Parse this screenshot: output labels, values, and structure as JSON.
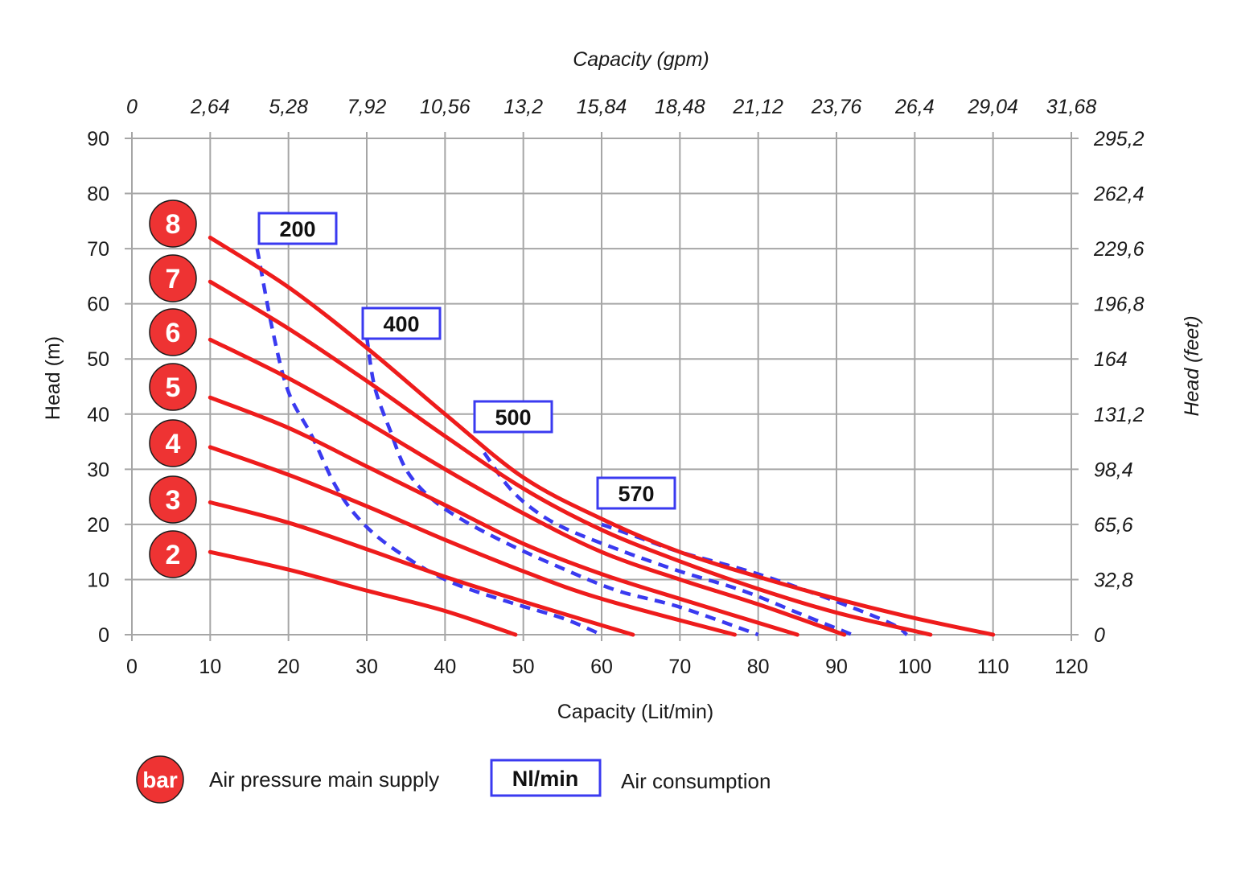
{
  "chart_data": {
    "type": "line",
    "xlabel": "Capacity (Lit/min)",
    "ylabel": "Head (m)",
    "x2label": "Capacity (gpm)",
    "y2label": "Head (feet)",
    "xlim": [
      0,
      120
    ],
    "ylim": [
      0,
      90
    ],
    "x_ticks": [
      "0",
      "10",
      "20",
      "30",
      "40",
      "50",
      "60",
      "70",
      "80",
      "90",
      "100",
      "110",
      "120"
    ],
    "y_ticks": [
      "0",
      "10",
      "20",
      "30",
      "40",
      "50",
      "60",
      "70",
      "80",
      "90"
    ],
    "x2_ticks": [
      "0",
      "2,64",
      "5,28",
      "7,92",
      "10,56",
      "13,2",
      "15,84",
      "18,48",
      "21,12",
      "23,76",
      "26,4",
      "29,04",
      "31,68"
    ],
    "y2_ticks": [
      "0",
      "32,8",
      "65,6",
      "98,4",
      "131,2",
      "164",
      "196,8",
      "229,6",
      "262,4",
      "295,2"
    ],
    "grid": true,
    "series": [
      {
        "name": "2",
        "kind": "pressure",
        "points": [
          [
            10,
            15
          ],
          [
            20,
            11.8
          ],
          [
            30,
            8
          ],
          [
            40,
            4.3
          ],
          [
            49,
            0
          ]
        ]
      },
      {
        "name": "3",
        "kind": "pressure",
        "points": [
          [
            10,
            24
          ],
          [
            20,
            20.3
          ],
          [
            30,
            15.5
          ],
          [
            40,
            10.5
          ],
          [
            50,
            6
          ],
          [
            64,
            0
          ]
        ]
      },
      {
        "name": "4",
        "kind": "pressure",
        "points": [
          [
            10,
            34
          ],
          [
            20,
            29
          ],
          [
            30,
            23.3
          ],
          [
            40,
            17.2
          ],
          [
            50,
            11.5
          ],
          [
            60,
            6.5
          ],
          [
            77,
            0
          ]
        ]
      },
      {
        "name": "5",
        "kind": "pressure",
        "points": [
          [
            10,
            43
          ],
          [
            20,
            37.5
          ],
          [
            30,
            30.5
          ],
          [
            40,
            23.5
          ],
          [
            50,
            16.5
          ],
          [
            60,
            11
          ],
          [
            70,
            6.5
          ],
          [
            85,
            0
          ]
        ]
      },
      {
        "name": "6",
        "kind": "pressure",
        "points": [
          [
            10,
            53.5
          ],
          [
            20,
            46.5
          ],
          [
            30,
            38.5
          ],
          [
            40,
            30
          ],
          [
            50,
            22
          ],
          [
            60,
            15
          ],
          [
            70,
            10
          ],
          [
            80,
            5.5
          ],
          [
            91,
            0
          ]
        ]
      },
      {
        "name": "7",
        "kind": "pressure",
        "points": [
          [
            10,
            64
          ],
          [
            20,
            55.5
          ],
          [
            30,
            46
          ],
          [
            40,
            36
          ],
          [
            50,
            26.5
          ],
          [
            60,
            19
          ],
          [
            70,
            13.3
          ],
          [
            80,
            8.3
          ],
          [
            90,
            4
          ],
          [
            102,
            0
          ]
        ]
      },
      {
        "name": "8",
        "kind": "pressure",
        "points": [
          [
            10,
            72
          ],
          [
            20,
            63
          ],
          [
            30,
            52
          ],
          [
            40,
            40
          ],
          [
            50,
            28.5
          ],
          [
            60,
            21
          ],
          [
            70,
            15
          ],
          [
            80,
            10.5
          ],
          [
            90,
            6.5
          ],
          [
            100,
            3
          ],
          [
            110,
            0
          ]
        ]
      },
      {
        "name": "200",
        "kind": "air",
        "points": [
          [
            16,
            70
          ],
          [
            18,
            55
          ],
          [
            20,
            44
          ],
          [
            23,
            36
          ],
          [
            26,
            27
          ],
          [
            29,
            21
          ],
          [
            33,
            16
          ],
          [
            40,
            10
          ],
          [
            48,
            6
          ],
          [
            55,
            3
          ],
          [
            60,
            0
          ]
        ]
      },
      {
        "name": "400",
        "kind": "air",
        "points": [
          [
            30,
            54
          ],
          [
            31,
            45
          ],
          [
            33,
            37
          ],
          [
            35,
            30
          ],
          [
            38,
            25
          ],
          [
            42,
            21
          ],
          [
            48,
            16.5
          ],
          [
            55,
            12
          ],
          [
            62,
            8
          ],
          [
            70,
            5
          ],
          [
            80,
            0
          ]
        ]
      },
      {
        "name": "500",
        "kind": "air",
        "points": [
          [
            45,
            33
          ],
          [
            48,
            27
          ],
          [
            51,
            23
          ],
          [
            55,
            19.5
          ],
          [
            62,
            15.5
          ],
          [
            70,
            11.5
          ],
          [
            78,
            8
          ],
          [
            85,
            4
          ],
          [
            92,
            0
          ]
        ]
      },
      {
        "name": "570",
        "kind": "air",
        "points": [
          [
            60,
            20
          ],
          [
            65,
            17.5
          ],
          [
            70,
            15
          ],
          [
            80,
            11
          ],
          [
            90,
            6
          ],
          [
            97,
            2
          ],
          [
            99,
            0
          ]
        ]
      }
    ],
    "pressure_badges": [
      "2",
      "3",
      "4",
      "5",
      "6",
      "7",
      "8"
    ],
    "air_labels": [
      "200",
      "400",
      "500",
      "570"
    ],
    "colors": {
      "pressure": "#ee1c1c",
      "air": "#3a3af0",
      "grid": "#a6a6a6"
    }
  },
  "legend": {
    "bar_badge": "bar",
    "bar_text": "Air pressure main supply",
    "nl_box": "Nl/min",
    "nl_text": "Air consumption"
  }
}
